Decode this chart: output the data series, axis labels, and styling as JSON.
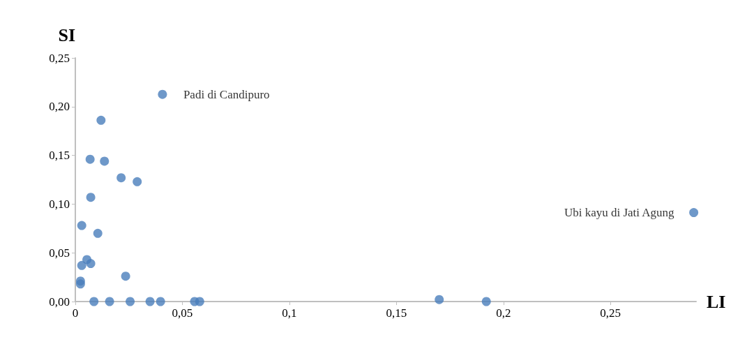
{
  "chart_data": {
    "type": "scatter",
    "xlabel": "LI",
    "ylabel": "SI",
    "x": [
      0.0407,
      0.2889,
      0.012,
      0.0069,
      0.0136,
      0.0214,
      0.0289,
      0.0072,
      0.003,
      0.0105,
      0.0054,
      0.003,
      0.0072,
      0.0235,
      0.0024,
      0.0024,
      0.0087,
      0.016,
      0.0256,
      0.0349,
      0.0398,
      0.0557,
      0.0581,
      0.17,
      0.192
    ],
    "values": [
      0.2126,
      0.0913,
      0.186,
      0.146,
      0.144,
      0.127,
      0.123,
      0.107,
      0.078,
      0.07,
      0.043,
      0.037,
      0.039,
      0.026,
      0.021,
      0.018,
      0,
      0,
      0,
      0,
      0,
      0,
      0,
      0.002,
      0
    ],
    "color": "#4a7ebb",
    "marker": "circle",
    "grid": false,
    "xlim": [
      0,
      0.29
    ],
    "ylim": [
      0,
      0.25
    ],
    "xticks": [
      0,
      {
        "value": 0.05,
        "label": "0,05"
      },
      {
        "value": 0.1,
        "label": "0,1"
      },
      {
        "value": 0.15,
        "label": "0,15"
      },
      {
        "value": 0.2,
        "label": "0,2"
      },
      {
        "value": 0.25,
        "label": "0,25"
      }
    ],
    "yticks": [
      {
        "value": 0,
        "label": "0,00"
      },
      {
        "value": 0.05,
        "label": "0,05"
      },
      {
        "value": 0.1,
        "label": "0,10"
      },
      {
        "value": 0.15,
        "label": "0,15"
      },
      {
        "value": 0.2,
        "label": "0,20"
      },
      {
        "value": 0.25,
        "label": "0,25"
      }
    ],
    "annotations": [
      {
        "text": "Padi di Candipuro",
        "x": 0.0407,
        "y": 0.2126
      },
      {
        "text": "Ubi kayu di Jati Agung",
        "x": 0.2889,
        "y": 0.0913
      }
    ]
  }
}
